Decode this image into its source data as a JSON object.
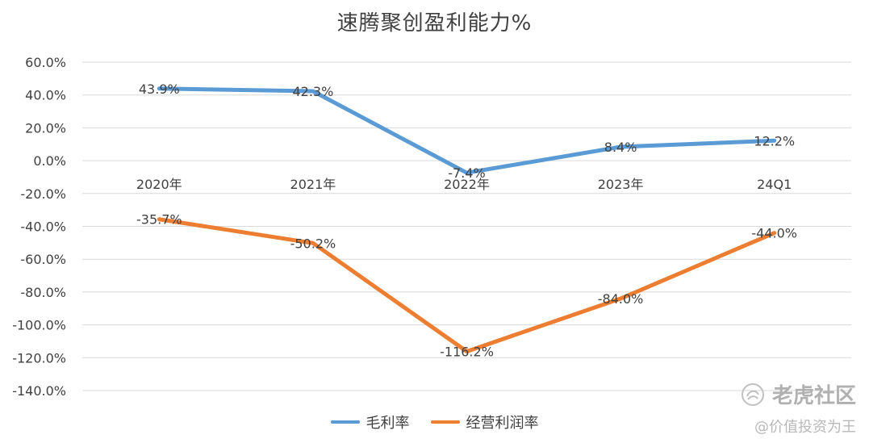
{
  "chart_data": {
    "type": "line",
    "title": "速腾聚创盈利能力%",
    "categories": [
      "2020年",
      "2021年",
      "2022年",
      "2023年",
      "24Q1"
    ],
    "series": [
      {
        "name": "毛利率",
        "values": [
          43.9,
          42.3,
          -7.4,
          8.4,
          12.2
        ],
        "labels": [
          "43.9%",
          "42.3%",
          "-7.4%",
          "8.4%",
          "12.2%"
        ],
        "color": "#5B9BD5"
      },
      {
        "name": "经营利润率",
        "values": [
          -35.7,
          -50.2,
          -116.2,
          -84.0,
          -44.0
        ],
        "labels": [
          "-35.7%",
          "-50.2%",
          "-116.2%",
          "-84.0%",
          "-44.0%"
        ],
        "color": "#ED7D31"
      }
    ],
    "ylim": [
      -140,
      60
    ],
    "yticks": [
      60,
      40,
      20,
      0,
      -20,
      -40,
      -60,
      -80,
      -100,
      -120,
      -140
    ],
    "ytick_labels": [
      "60.0%",
      "40.0%",
      "20.0%",
      "0.0%",
      "-20.0%",
      "-40.0%",
      "-60.0%",
      "-80.0%",
      "-100.0%",
      "-120.0%",
      "-140.0%"
    ],
    "grid": true,
    "legend_position": "bottom"
  },
  "watermark": {
    "brand": "老虎社区",
    "tagline": "@价值投资为王"
  }
}
